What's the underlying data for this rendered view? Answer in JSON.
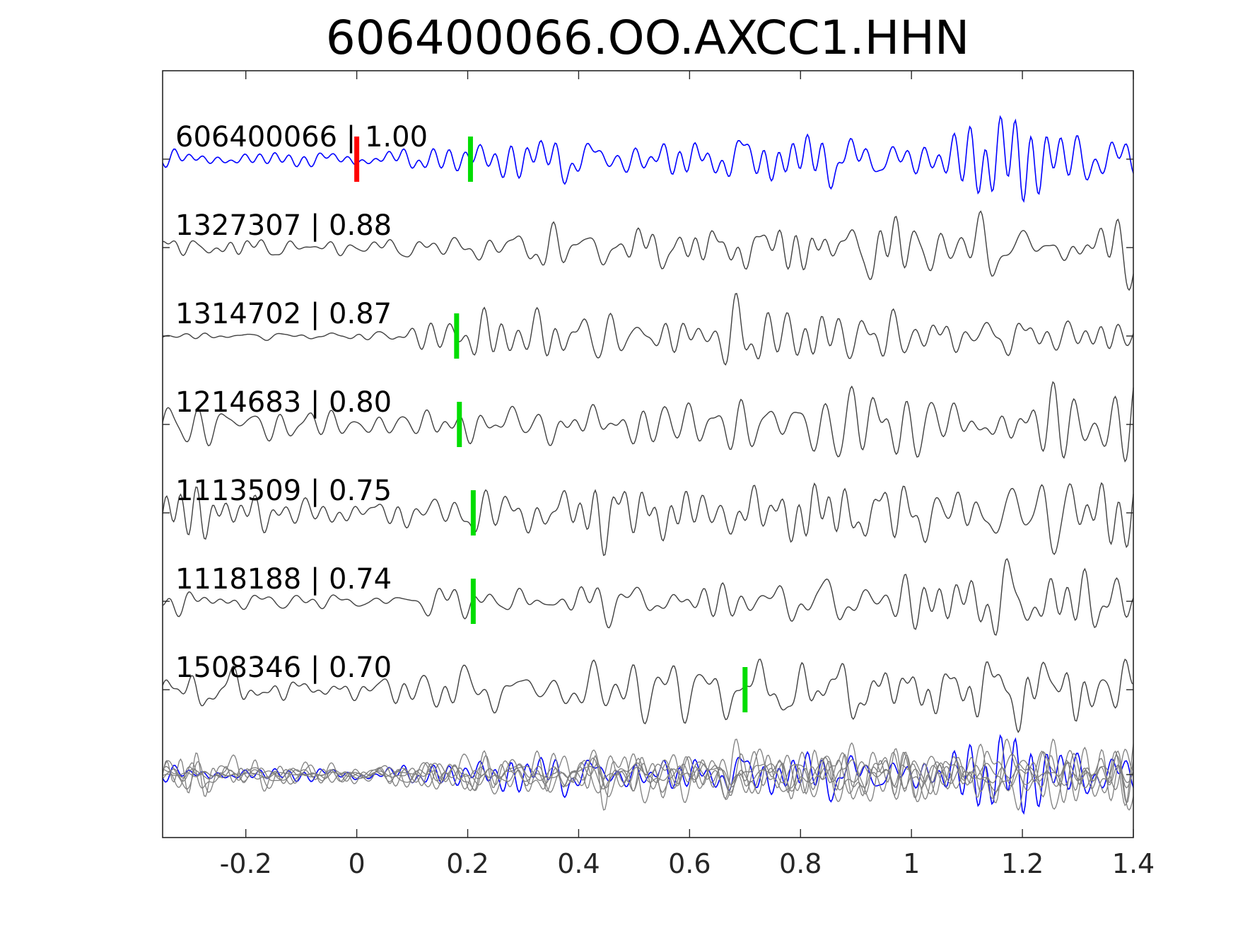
{
  "chart_data": {
    "type": "line",
    "title": "606400066.OO.AXCC1.HHN",
    "xlim": [
      -0.35,
      1.4
    ],
    "xticks": [
      -0.2,
      0,
      0.2,
      0.4,
      0.6,
      0.8,
      1,
      1.2,
      1.4
    ],
    "xtick_labels": [
      "-0.2",
      "0",
      "0.2",
      "0.4",
      "0.6",
      "0.8",
      "1",
      "1.2",
      "1.4"
    ],
    "template_color": "#0000ff",
    "trace_color": "#404040",
    "overlay_color": "#7f7f7f",
    "pick_template_color": "#ff0000",
    "pick_color": "#00dd00",
    "traces": [
      {
        "id": "606400066",
        "cc": "1.00",
        "label": "606400066 | 1.00",
        "template": true,
        "pick_red": 0.0,
        "pick_green": 0.205,
        "seed": 11
      },
      {
        "id": "1327307",
        "cc": "0.88",
        "label": "1327307 | 0.88",
        "template": false,
        "pick_green": null,
        "seed": 23
      },
      {
        "id": "1314702",
        "cc": "0.87",
        "label": "1314702 | 0.87",
        "template": false,
        "pick_green": 0.18,
        "seed": 37
      },
      {
        "id": "1214683",
        "cc": "0.80",
        "label": "1214683 | 0.80",
        "template": false,
        "pick_green": 0.185,
        "seed": 41
      },
      {
        "id": "1113509",
        "cc": "0.75",
        "label": "1113509 | 0.75",
        "template": false,
        "pick_green": 0.21,
        "seed": 53
      },
      {
        "id": "1118188",
        "cc": "0.74",
        "label": "1118188 | 0.74",
        "template": false,
        "pick_green": 0.21,
        "seed": 67
      },
      {
        "id": "1508346",
        "cc": "0.70",
        "label": "1508346 | 0.70",
        "template": false,
        "pick_green": 0.7,
        "seed": 79
      }
    ]
  }
}
